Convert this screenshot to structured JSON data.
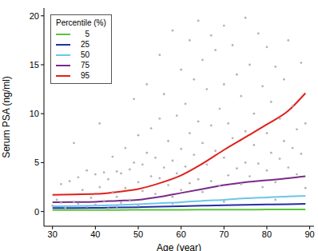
{
  "chart_data": {
    "type": "line",
    "x_label": "Age (year)",
    "y_label": "Serum PSA (ng/ml)",
    "legend_title": "Percentile (%)",
    "legend": "upper left",
    "grid": false,
    "xlim": [
      28,
      91
    ],
    "xticks": [
      30,
      40,
      50,
      60,
      70,
      80,
      90
    ],
    "ylim": [
      -1.5,
      20.8
    ],
    "yticks": [
      0,
      5,
      10,
      15,
      20
    ],
    "x": [
      30,
      35,
      40,
      45,
      50,
      55,
      60,
      65,
      70,
      75,
      80,
      85,
      89
    ],
    "series": [
      {
        "name": "5",
        "color": "#5cc43a",
        "values": [
          0.15,
          0.15,
          0.16,
          0.16,
          0.17,
          0.18,
          0.18,
          0.19,
          0.2,
          0.2,
          0.21,
          0.21,
          0.22
        ]
      },
      {
        "name": "25",
        "color": "#1f2fa8",
        "values": [
          0.35,
          0.36,
          0.38,
          0.41,
          0.45,
          0.5,
          0.55,
          0.6,
          0.65,
          0.69,
          0.72,
          0.75,
          0.78
        ]
      },
      {
        "name": "50",
        "color": "#6cc6e8",
        "values": [
          0.55,
          0.57,
          0.6,
          0.67,
          0.75,
          0.85,
          0.95,
          1.1,
          1.2,
          1.35,
          1.45,
          1.55,
          1.6
        ]
      },
      {
        "name": "75",
        "color": "#7a2a88",
        "values": [
          0.95,
          0.97,
          1.0,
          1.1,
          1.2,
          1.5,
          1.9,
          2.3,
          2.7,
          3.0,
          3.2,
          3.4,
          3.6
        ]
      },
      {
        "name": "95",
        "color": "#e0201c",
        "values": [
          1.7,
          1.75,
          1.8,
          2.0,
          2.3,
          2.9,
          3.7,
          4.9,
          6.3,
          7.6,
          8.9,
          10.3,
          12.1
        ]
      }
    ],
    "points": {
      "type": "scatter",
      "marker": "circle",
      "color": "#b4b4b4",
      "x": [
        30,
        31,
        32,
        33,
        34,
        35,
        35,
        36,
        36,
        37,
        38,
        38,
        39,
        40,
        40,
        41,
        41,
        42,
        42,
        43,
        43,
        44,
        44,
        45,
        45,
        46,
        46,
        47,
        47,
        48,
        48,
        49,
        49,
        50,
        50,
        50,
        51,
        51,
        52,
        52,
        53,
        53,
        54,
        54,
        55,
        55,
        55,
        56,
        56,
        57,
        57,
        58,
        58,
        58,
        59,
        59,
        60,
        60,
        60,
        61,
        61,
        62,
        62,
        62,
        63,
        63,
        64,
        64,
        64,
        65,
        65,
        65,
        66,
        66,
        67,
        67,
        67,
        68,
        68,
        69,
        69,
        70,
        70,
        70,
        71,
        71,
        72,
        72,
        73,
        73,
        74,
        74,
        75,
        75,
        75,
        76,
        76,
        77,
        77,
        78,
        78,
        79,
        79,
        80,
        80,
        80,
        81,
        81,
        82,
        82,
        83,
        83,
        84,
        84,
        85,
        85,
        86,
        86,
        87,
        87,
        88,
        88,
        89,
        89,
        32,
        45,
        58,
        70,
        82
      ],
      "y": [
        0.6,
        1.2,
        2.8,
        0.4,
        3.1,
        1.0,
        7.0,
        0.8,
        3.5,
        2.2,
        0.5,
        4.2,
        1.4,
        0.7,
        3.8,
        2.5,
        9.0,
        1.1,
        4.0,
        3.3,
        0.3,
        2.0,
        5.6,
        4.1,
        1.5,
        3.9,
        0.9,
        6.5,
        2.4,
        4.3,
        1.2,
        5.0,
        11.5,
        3.0,
        7.8,
        0.6,
        4.8,
        2.1,
        6.0,
        13.0,
        3.6,
        8.5,
        1.8,
        5.5,
        9.5,
        3.4,
        16.0,
        4.5,
        12.0,
        2.7,
        7.2,
        18.5,
        5.2,
        1.5,
        9.8,
        3.9,
        14.5,
        6.4,
        2.2,
        11.0,
        4.6,
        17.5,
        8.0,
        2.9,
        13.5,
        5.8,
        19.5,
        9.2,
        3.3,
        15.5,
        7.0,
        2.0,
        12.5,
        4.8,
        18.0,
        8.8,
        3.1,
        16.5,
        6.2,
        10.5,
        2.6,
        19.0,
        13.0,
        5.5,
        9.0,
        3.7,
        17.0,
        7.5,
        14.0,
        4.4,
        11.8,
        2.8,
        19.8,
        8.2,
        5.0,
        15.0,
        3.6,
        10.0,
        6.8,
        18.2,
        4.9,
        12.8,
        2.5,
        16.8,
        8.0,
        4.2,
        11.2,
        6.0,
        14.8,
        3.0,
        9.5,
        5.4,
        13.5,
        7.2,
        17.5,
        4.5,
        10.8,
        6.5,
        8.4,
        3.8,
        15.2,
        5.9,
        9.0,
        2.4,
        0.9,
        0.5,
        0.8,
        1.0,
        1.2
      ]
    }
  }
}
